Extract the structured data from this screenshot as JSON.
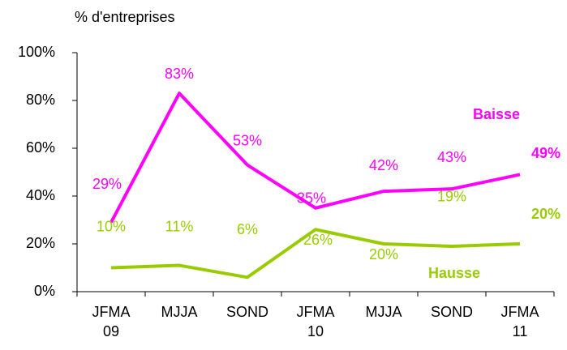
{
  "chart_data": {
    "type": "line",
    "y_axis_label": "% d'entreprises",
    "categories": [
      [
        "JFMA",
        "09"
      ],
      [
        "MJJA"
      ],
      [
        "SOND"
      ],
      [
        "JFMA",
        "10"
      ],
      [
        "MJJA"
      ],
      [
        "SOND"
      ],
      [
        "JFMA",
        "11"
      ]
    ],
    "series": [
      {
        "name": "Baisse",
        "color": "#ff00ff",
        "values": [
          29,
          83,
          53,
          35,
          42,
          43,
          49
        ],
        "value_labels": [
          "29%",
          "83%",
          "53%",
          "35%",
          "42%",
          "43%",
          "49%"
        ]
      },
      {
        "name": "Hausse",
        "color": "#99cc00",
        "values": [
          10,
          11,
          6,
          26,
          20,
          19,
          20
        ],
        "value_labels": [
          "10%",
          "11%",
          "6%",
          "26%",
          "20%",
          "19%",
          "20%"
        ]
      }
    ],
    "ylim": [
      0,
      100
    ],
    "yticks": [
      {
        "value": 0,
        "label": "0%"
      },
      {
        "value": 20,
        "label": "20%"
      },
      {
        "value": 40,
        "label": "40%"
      },
      {
        "value": 60,
        "label": "60%"
      },
      {
        "value": 80,
        "label": "80%"
      },
      {
        "value": 100,
        "label": "100%"
      }
    ]
  }
}
